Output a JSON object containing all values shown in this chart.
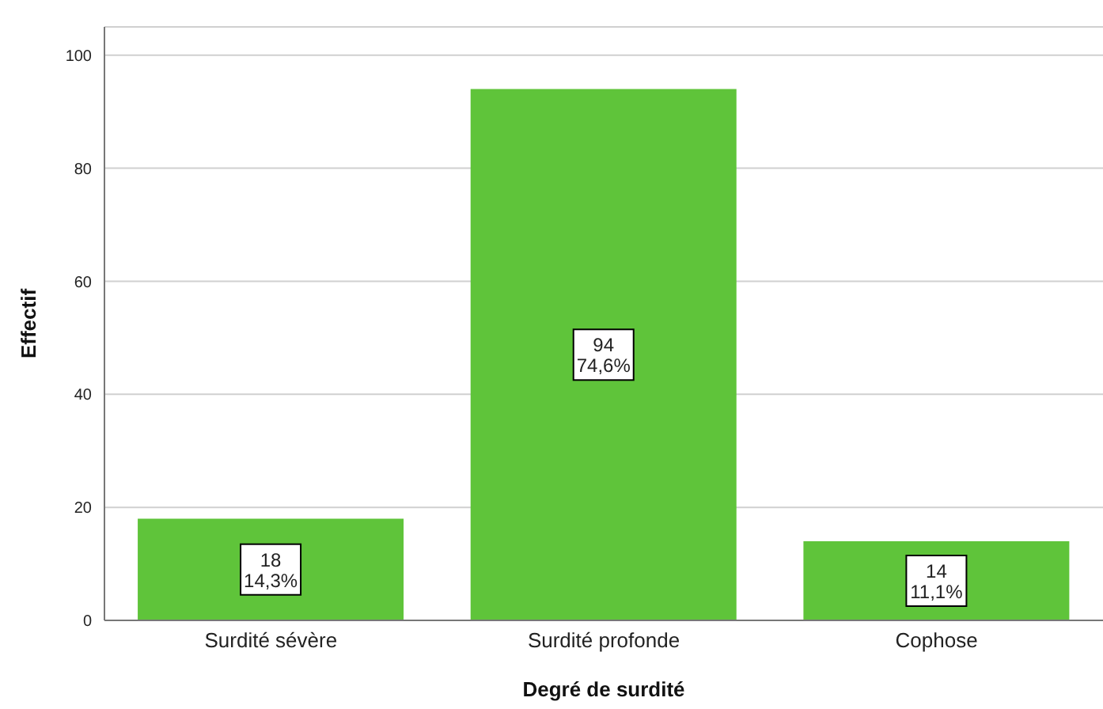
{
  "chart_data": {
    "type": "bar",
    "xlabel": "Degré de surdité",
    "ylabel": "Effectif",
    "categories": [
      "Surdité sévère",
      "Surdité profonde",
      "Cophose"
    ],
    "values": [
      18,
      94,
      14
    ],
    "color": "#5fc43a",
    "value_labels": [
      "18\n14,3%",
      "94\n74,6%",
      "14\n11,1%"
    ],
    "ylim": [
      0,
      105
    ],
    "yticks": [
      0,
      20,
      40,
      60,
      80,
      100
    ],
    "grid": "y"
  }
}
